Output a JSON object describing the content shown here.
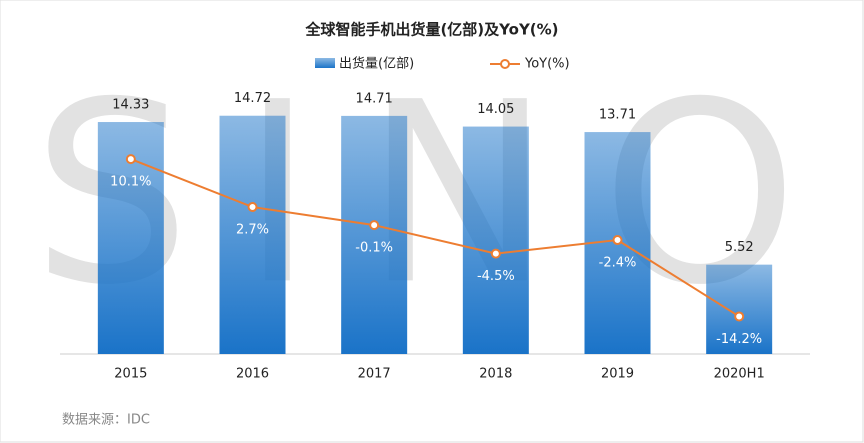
{
  "chart_data": {
    "type": "bar",
    "title": "全球智能手机出货量(亿部)及YoY(%)",
    "watermark": "SINO",
    "source": "数据来源：IDC",
    "categories": [
      "2015",
      "2016",
      "2017",
      "2018",
      "2019",
      "2020H1"
    ],
    "series": [
      {
        "name": "出货量(亿部)",
        "type": "bar",
        "color": "#1a73c8",
        "values": [
          14.33,
          14.72,
          14.71,
          14.05,
          13.71,
          5.52
        ]
      },
      {
        "name": "YoY(%)",
        "type": "line",
        "axis": "y2",
        "color": "#ed7d31",
        "values": [
          10.1,
          2.7,
          -0.1,
          -4.5,
          -2.4,
          -14.2
        ],
        "value_labels": [
          "10.1%",
          "2.7%",
          "-0.1%",
          "-4.5%",
          "-2.4%",
          "-14.2%"
        ]
      }
    ],
    "ylim": [
      0,
      16
    ],
    "y2lim": [
      -20,
      20
    ]
  }
}
